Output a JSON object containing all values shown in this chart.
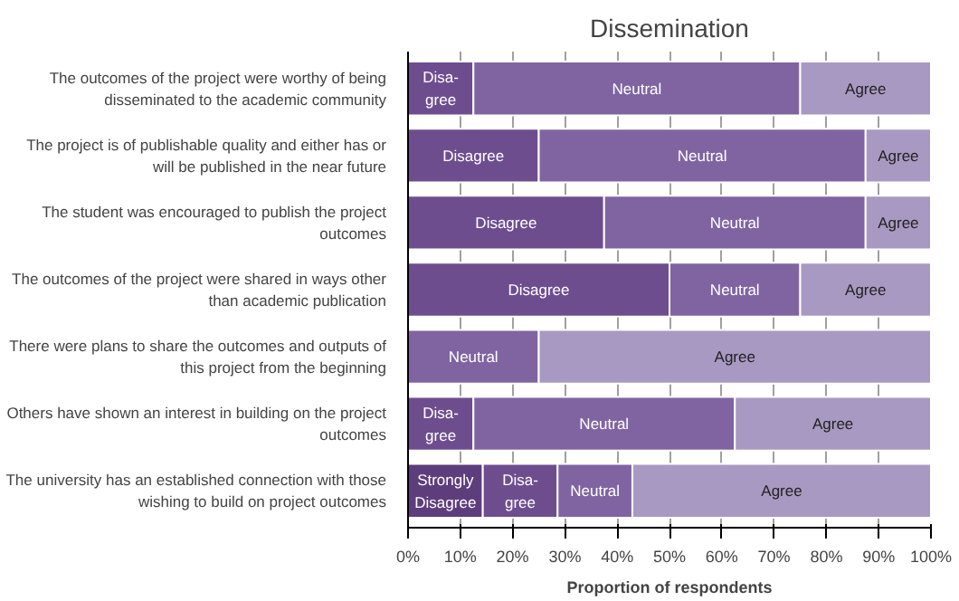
{
  "chart_data": {
    "type": "bar",
    "orientation": "horizontal",
    "stacked": true,
    "title": "Dissemination",
    "xlabel": "Proportion of respondents",
    "categories": [
      "The outcomes of the project were worthy of being disseminated to the academic community",
      "The project is of publishable quality and either has or will be published in the near future",
      "The student was encouraged to publish the project outcomes",
      "The outcomes of the project were shared in ways other than academic publication",
      "There were plans to share the outcomes and outputs of this project from the beginning",
      "Others have shown an interest in building on the project outcomes",
      "The university has an established connection with those wishing to build on project outcomes"
    ],
    "series": [
      {
        "color": "#5e3d7d",
        "values": [
          0,
          0,
          0,
          0,
          0,
          0,
          14.3
        ],
        "value_labels": [
          null,
          null,
          null,
          null,
          null,
          null,
          "Strongly\nDisagree"
        ]
      },
      {
        "color": "#6e4d8f",
        "values": [
          12.5,
          25,
          37.5,
          50,
          0,
          12.5,
          14.3
        ],
        "value_labels": [
          "Disa-\ngree",
          "Disagree",
          "Disagree",
          "Disagree",
          null,
          "Disa-\ngree",
          "Disa-\ngree"
        ]
      },
      {
        "color": "#8064a2",
        "values": [
          62.5,
          62.5,
          50,
          25,
          25,
          50,
          14.3
        ],
        "value_labels": [
          "Neutral",
          "Neutral",
          "Neutral",
          "Neutral",
          "Neutral",
          "Neutral",
          "Neutral"
        ]
      },
      {
        "color": "#a899c2",
        "values": [
          25,
          12.5,
          12.5,
          25,
          75,
          37.5,
          57.1
        ],
        "value_labels": [
          "Agree",
          "Agree",
          "Agree",
          "Agree",
          "Agree",
          "Agree",
          "Agree"
        ]
      }
    ],
    "xlim": [
      0,
      100
    ],
    "xticks": [
      {
        "value": 0,
        "label": "0%"
      },
      {
        "value": 10,
        "label": "10%"
      },
      {
        "value": 20,
        "label": "20%"
      },
      {
        "value": 30,
        "label": "30%"
      },
      {
        "value": 40,
        "label": "40%"
      },
      {
        "value": 50,
        "label": "50%"
      },
      {
        "value": 60,
        "label": "60%"
      },
      {
        "value": 70,
        "label": "70%"
      },
      {
        "value": 80,
        "label": "80%"
      },
      {
        "value": 90,
        "label": "90%"
      },
      {
        "value": 100,
        "label": "100%"
      }
    ],
    "grid": "x"
  }
}
